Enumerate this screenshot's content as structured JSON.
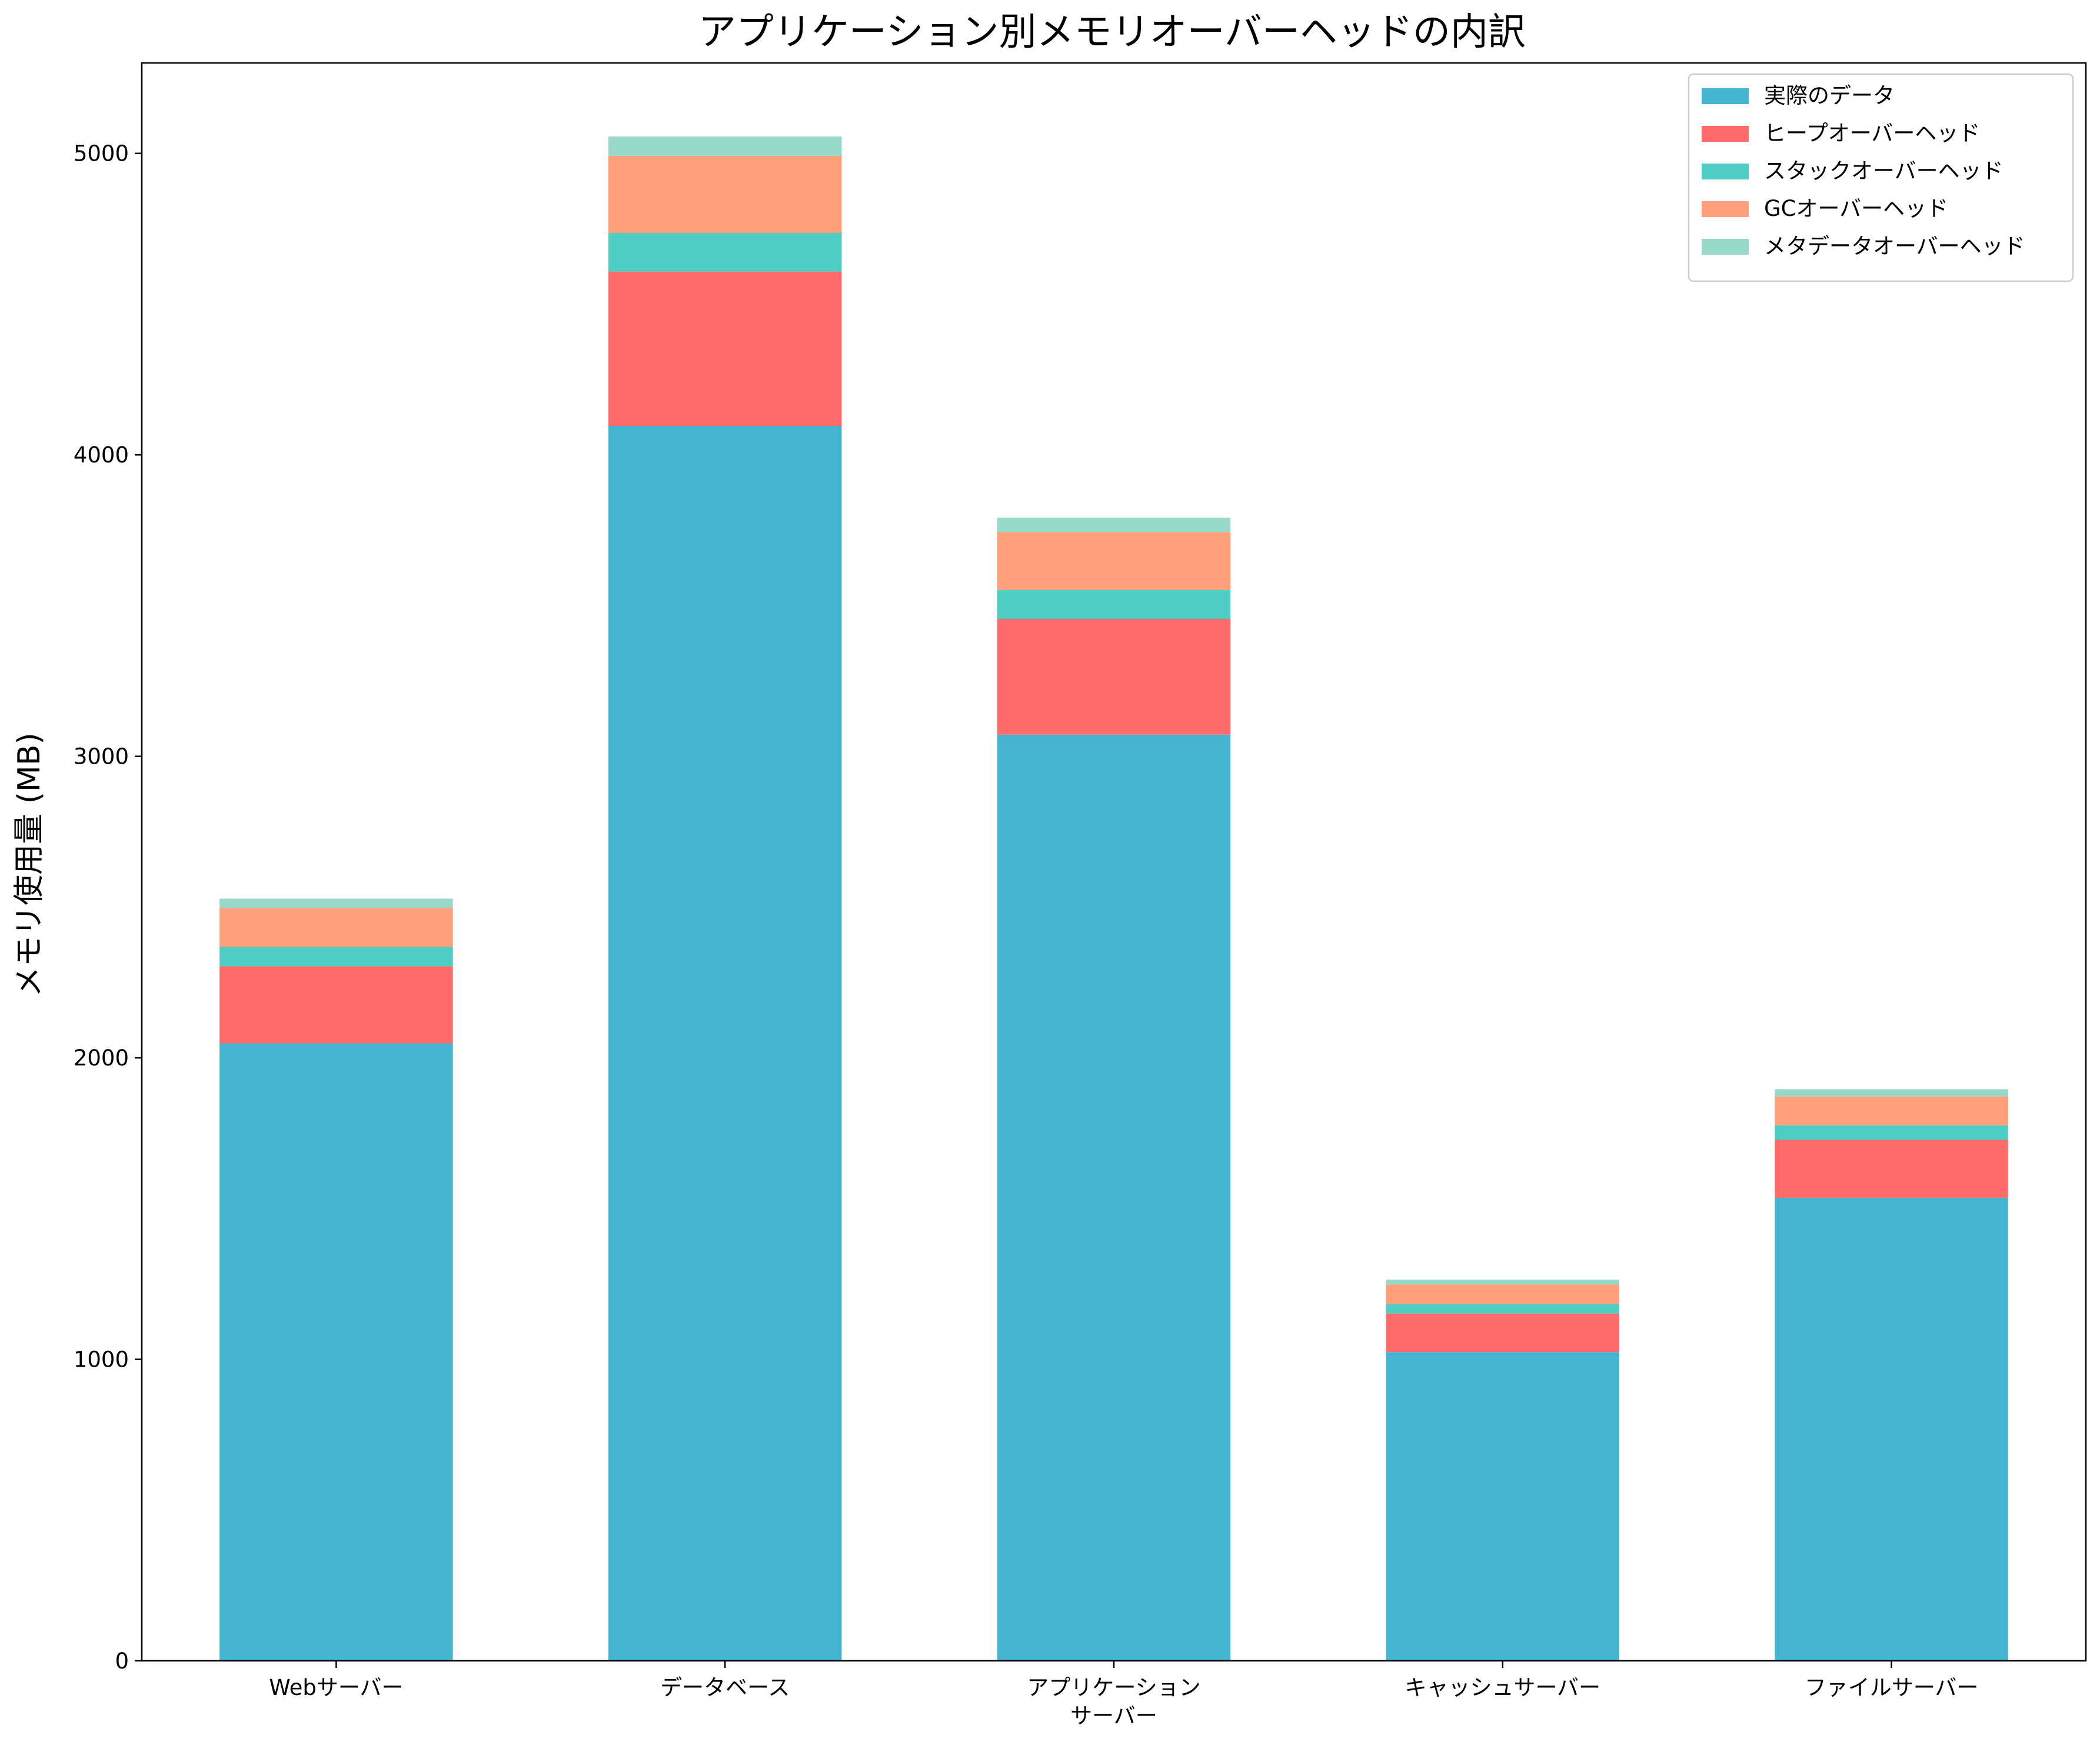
{
  "chart_data": {
    "type": "bar",
    "stacked": true,
    "title": "アプリケーション別メモリオーバーヘッドの内訳",
    "xlabel": "",
    "ylabel": "メモリ使用量 (MB)",
    "ylim": [
      0,
      5300
    ],
    "yticks": [
      0,
      1000,
      2000,
      3000,
      4000,
      5000
    ],
    "categories": [
      "Webサーバー",
      "データベース",
      "アプリケーション\nサーバー",
      "キャッシュサーバー",
      "ファイルサーバー"
    ],
    "legend_position": "top-right",
    "grid": false,
    "series": [
      {
        "name": "実際のデータ",
        "color": "#45B4D0",
        "values": [
          2048,
          4096,
          3072,
          1024,
          1536
        ]
      },
      {
        "name": "ヒープオーバーヘッド",
        "color": "#FF6B6B",
        "values": [
          256,
          512,
          384,
          128,
          192
        ]
      },
      {
        "name": "スタックオーバーヘッド",
        "color": "#4ECDC4",
        "values": [
          64,
          128,
          96,
          32,
          48
        ]
      },
      {
        "name": "GCオーバーヘッド",
        "color": "#FFA07A",
        "values": [
          128,
          256,
          192,
          64,
          96
        ]
      },
      {
        "name": "メタデータオーバーヘッド",
        "color": "#98D8C8",
        "values": [
          32,
          64,
          48,
          16,
          24
        ]
      }
    ]
  }
}
